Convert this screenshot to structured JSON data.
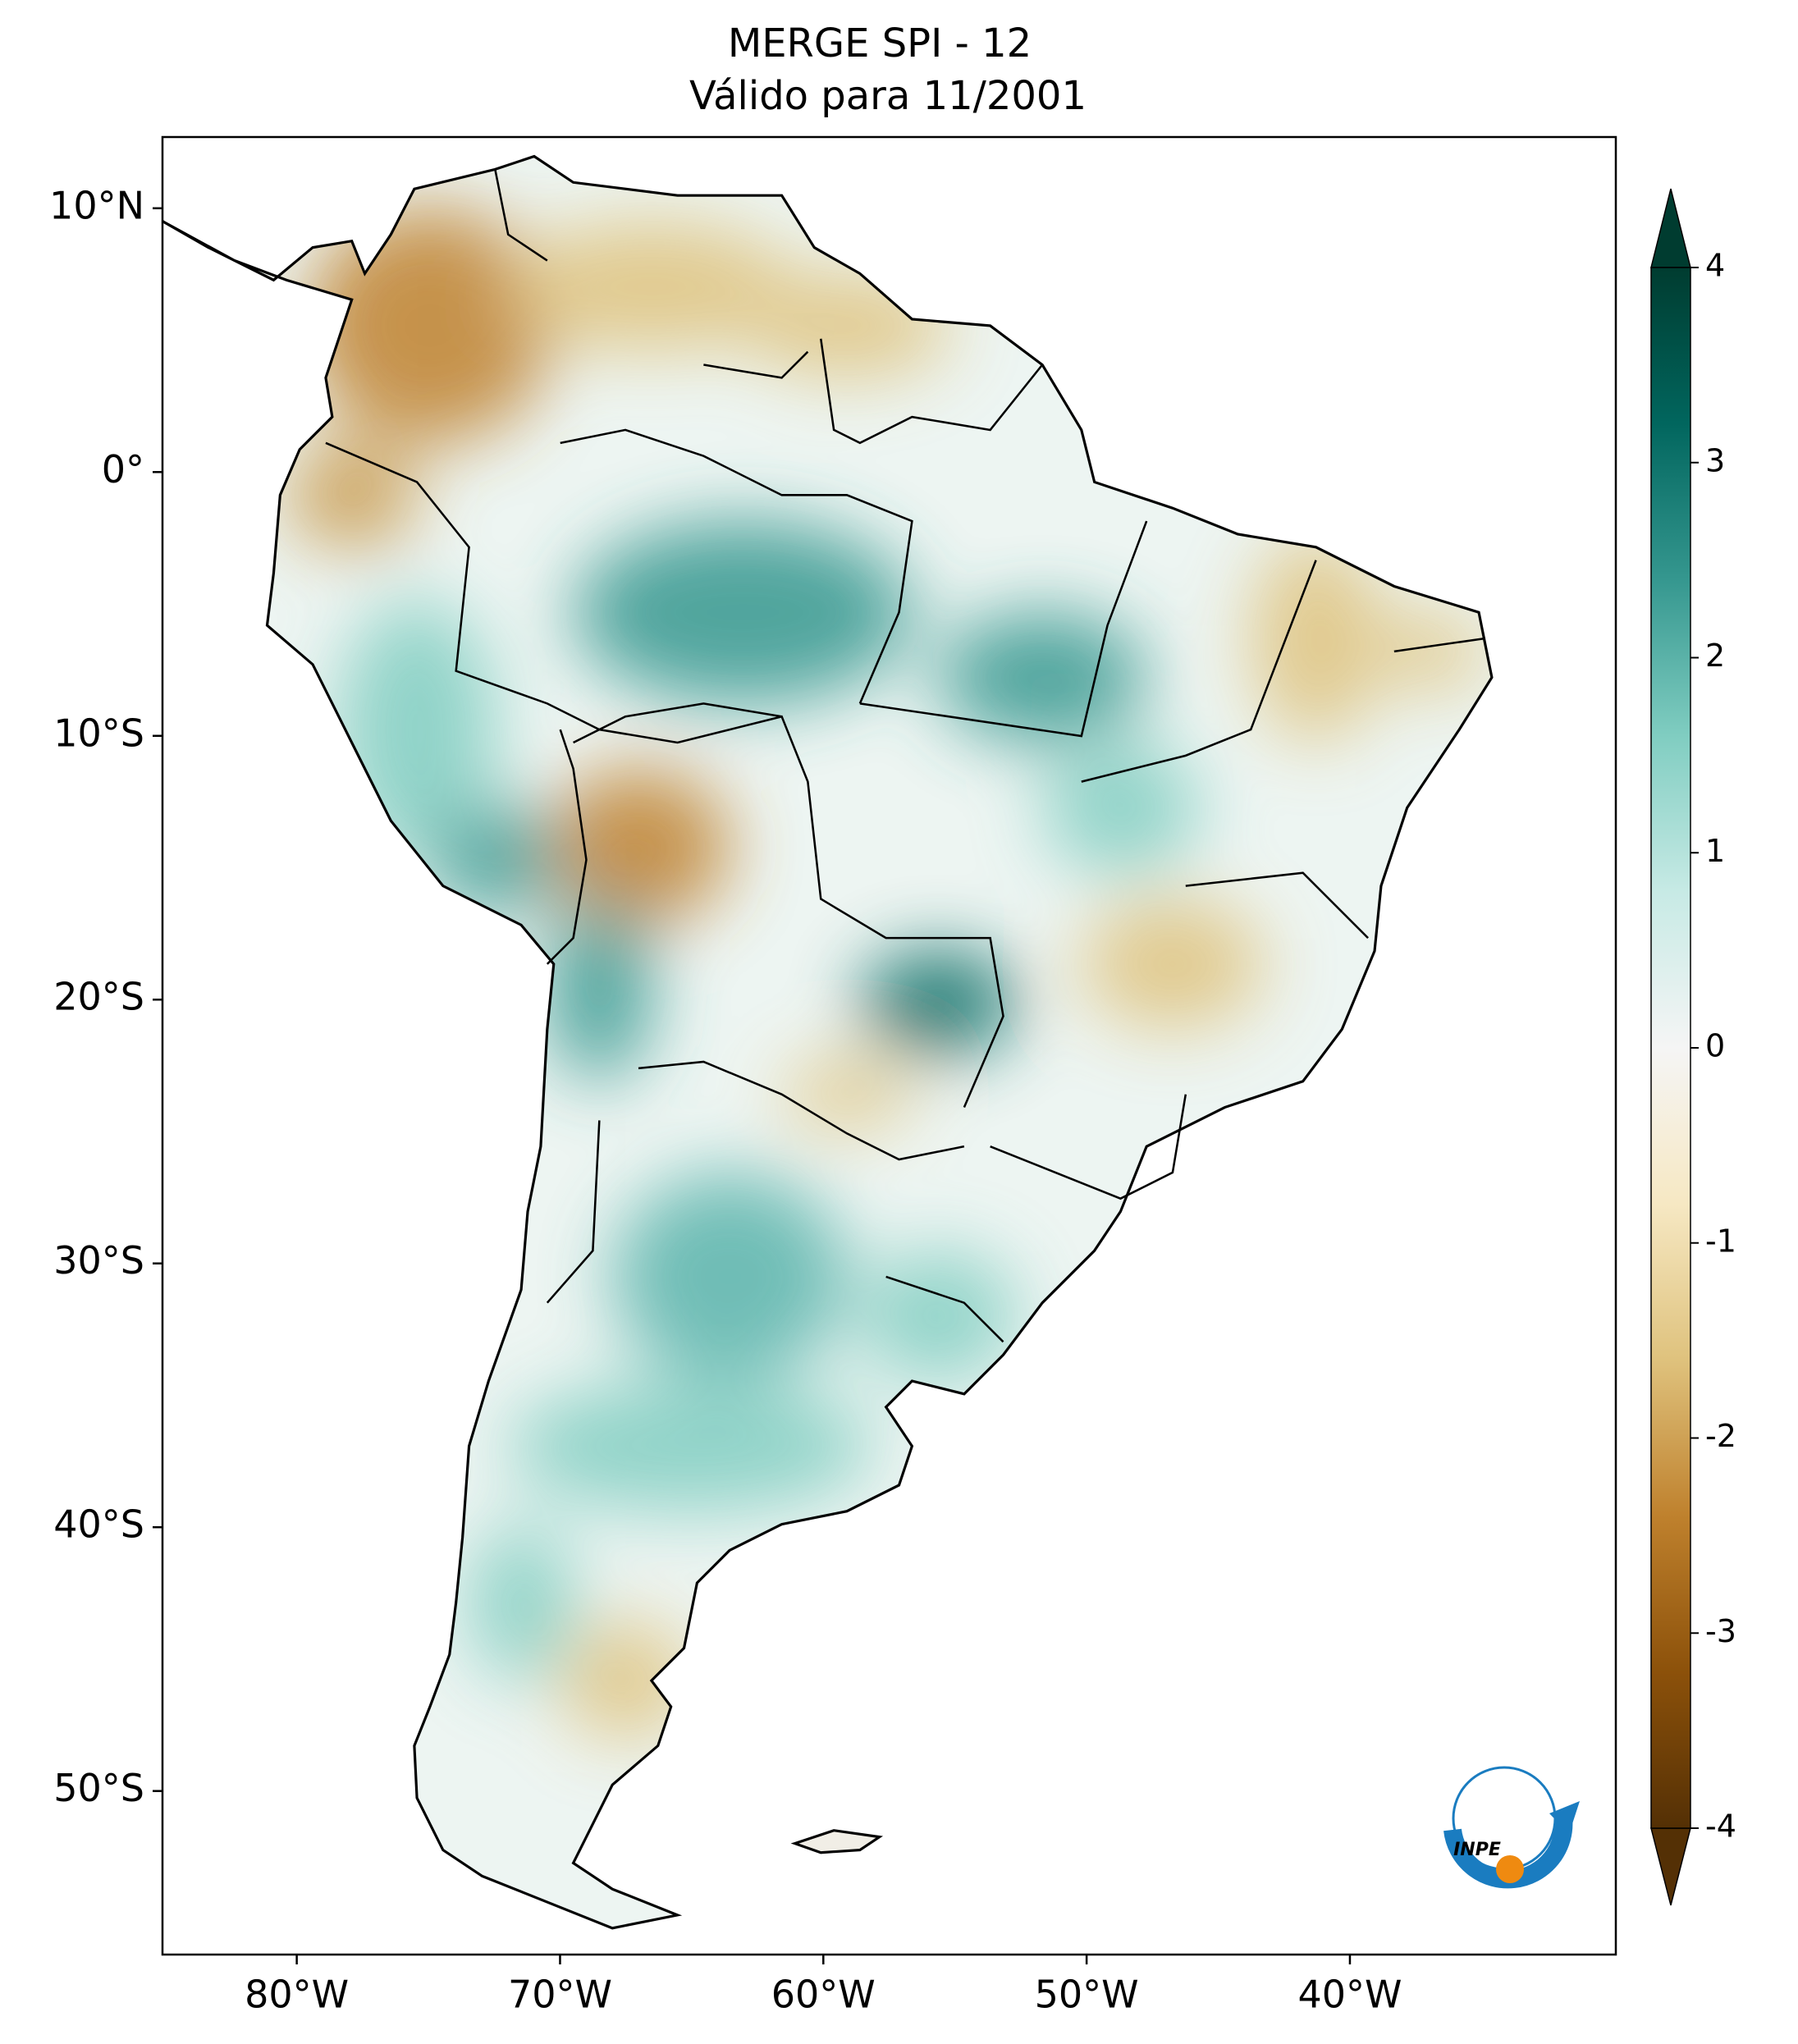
{
  "map": {
    "title": "MERGE   SPI - 12",
    "subtitle": "Válido para 11/2001",
    "xlim": [
      -85.1,
      -29.9
    ],
    "ylim": [
      -56.2,
      12.7
    ],
    "xticks": [
      {
        "value": -80,
        "label": "80°W"
      },
      {
        "value": -70,
        "label": "70°W"
      },
      {
        "value": -60,
        "label": "60°W"
      },
      {
        "value": -50,
        "label": "50°W"
      },
      {
        "value": -40,
        "label": "40°W"
      }
    ],
    "yticks": [
      {
        "value": 10,
        "label": "10°N"
      },
      {
        "value": 0,
        "label": "0°"
      },
      {
        "value": -10,
        "label": "10°S"
      },
      {
        "value": -20,
        "label": "20°S"
      },
      {
        "value": -30,
        "label": "30°S"
      },
      {
        "value": -40,
        "label": "40°S"
      },
      {
        "value": -50,
        "label": "50°S"
      }
    ],
    "colorbar": {
      "lim": [
        -4,
        4
      ],
      "ticks": [
        -4,
        -3,
        -2,
        -1,
        0,
        1,
        2,
        3,
        4
      ],
      "colors": [
        "#543005",
        "#8c510a",
        "#bf812d",
        "#dfc27d",
        "#f6e8c3",
        "#f5f5f5",
        "#c7eae5",
        "#80cdc1",
        "#35978f",
        "#01665e",
        "#003c30"
      ]
    },
    "logo": "INPE"
  }
}
